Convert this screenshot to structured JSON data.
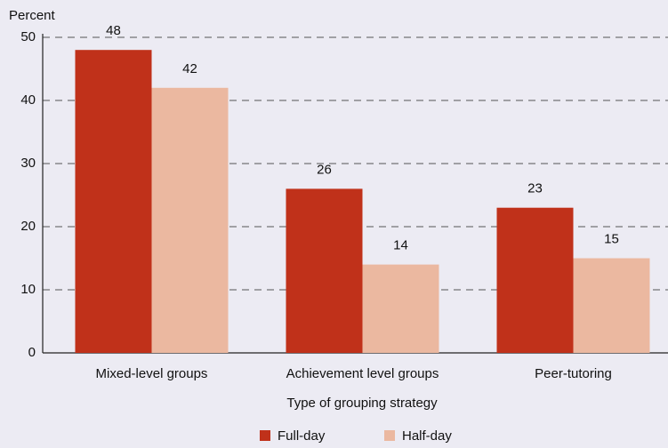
{
  "chart_data": {
    "type": "bar",
    "y_label": "Percent",
    "x_label": "Type of grouping strategy",
    "categories": [
      "Mixed-level groups",
      "Achievement level groups",
      "Peer-tutoring"
    ],
    "series": [
      {
        "name": "Full-day",
        "color": "#c0311a",
        "values": [
          48,
          26,
          23
        ]
      },
      {
        "name": "Half-day",
        "color": "#ebb8a0",
        "values": [
          42,
          14,
          15
        ]
      }
    ],
    "ylim": [
      0,
      50
    ],
    "yticks": [
      0,
      10,
      20,
      30,
      40,
      50
    ],
    "grid": true,
    "legend": "bottom"
  }
}
